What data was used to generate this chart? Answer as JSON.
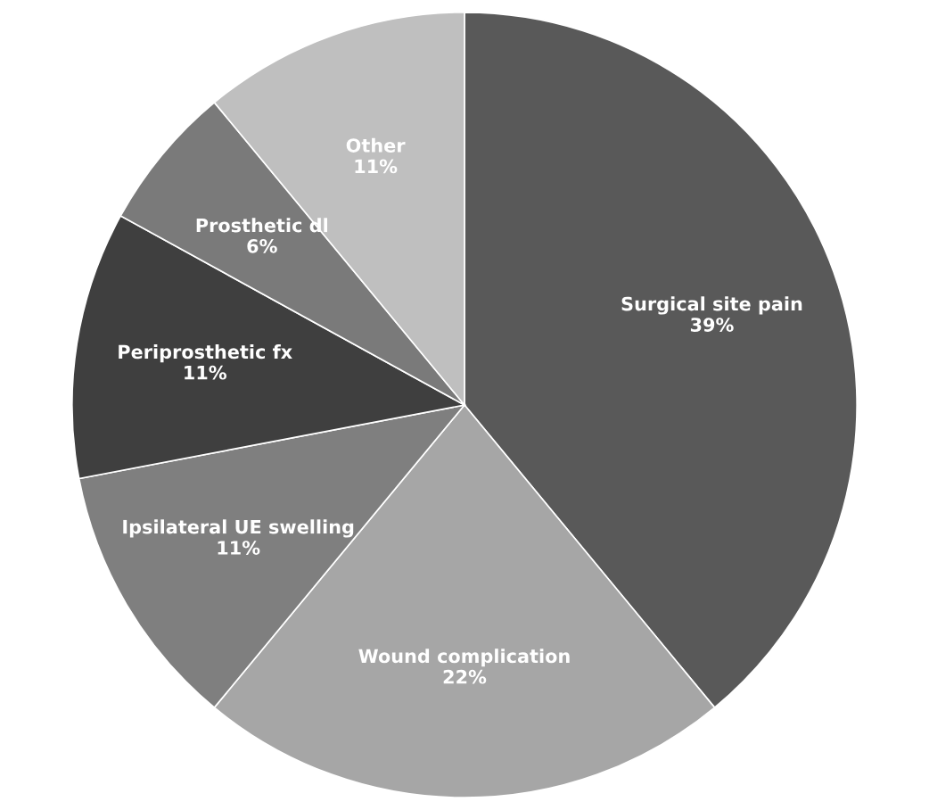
{
  "chart_data": {
    "type": "pie",
    "categories": [
      "Surgical site pain",
      "Wound complication",
      "Ipsilateral UE swelling",
      "Periprosthetic fx",
      "Prosthetic dl",
      "Other"
    ],
    "values": [
      39,
      22,
      11,
      11,
      6,
      11
    ],
    "value_labels": [
      "39%",
      "22%",
      "11%",
      "11%",
      "6%",
      "11%"
    ],
    "colors": [
      "#595959",
      "#a6a6a6",
      "#7f7f7f",
      "#3f3f3f",
      "#7a7a7a",
      "#bfbfbf"
    ],
    "legend": false
  }
}
